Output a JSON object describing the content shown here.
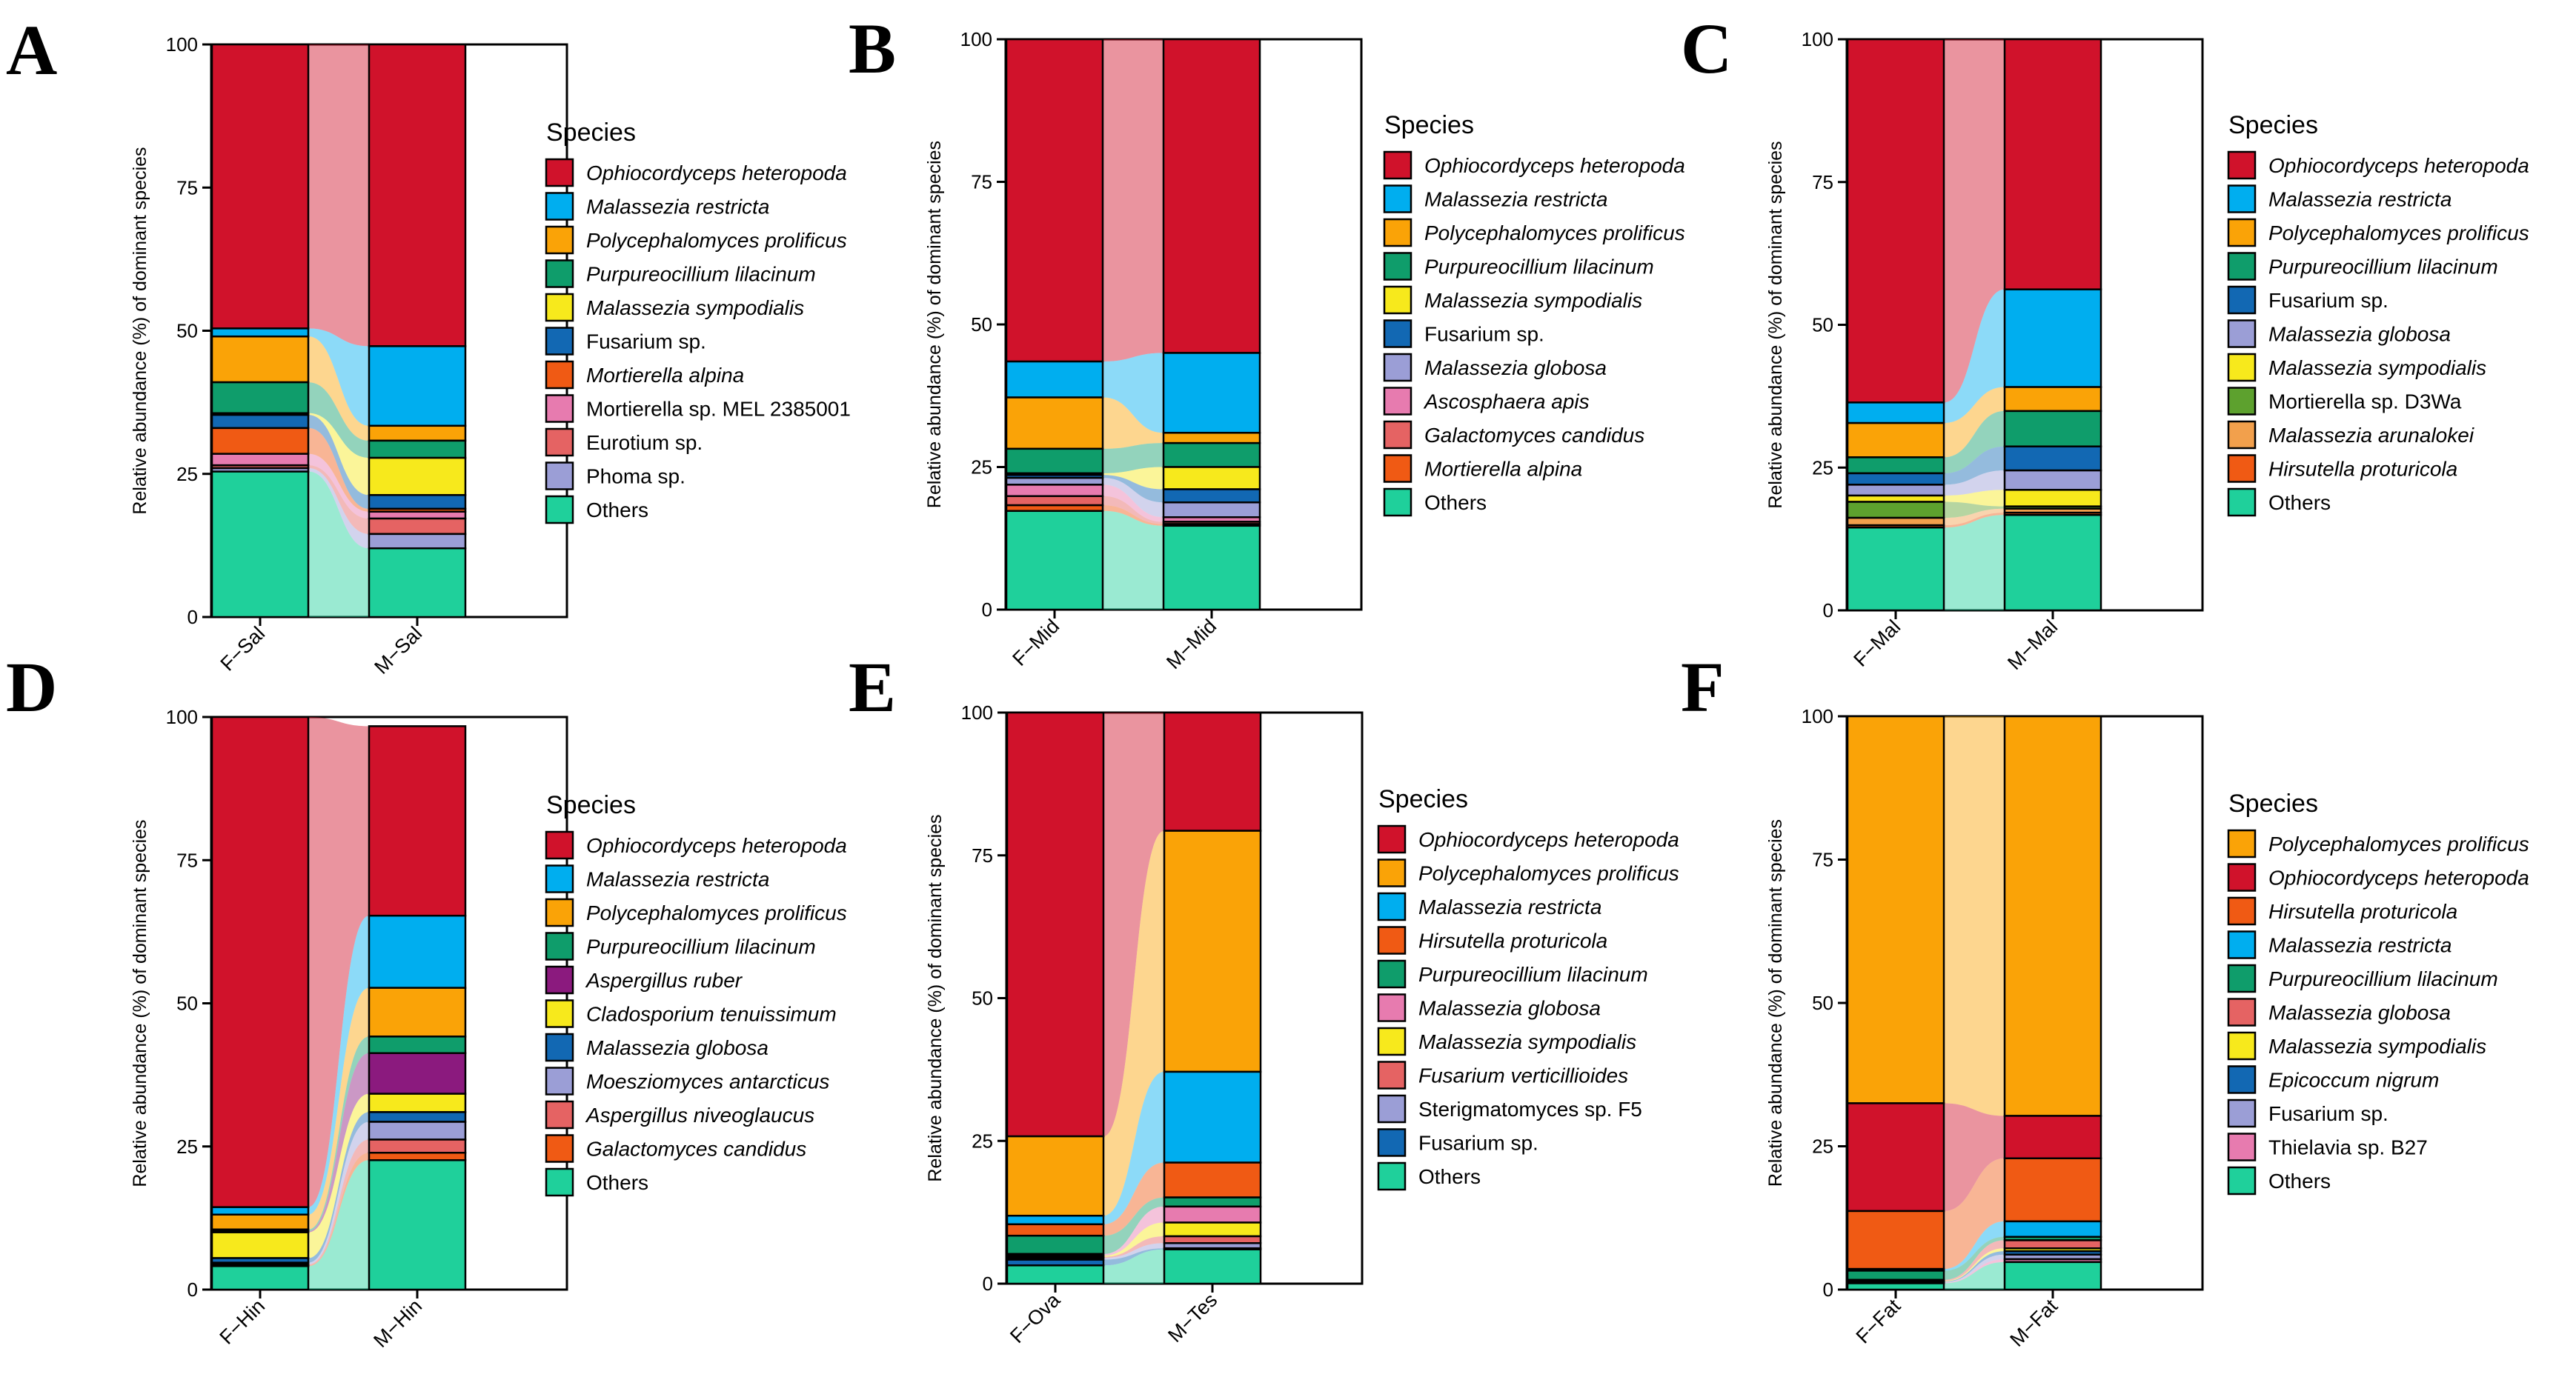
{
  "chart_data": [
    {
      "panel": "A",
      "type": "bar",
      "stacked": true,
      "categories": [
        "F−Sal",
        "M−Sal"
      ],
      "ylabel": "Relative abundance (%) of dominant species",
      "ylim": [
        0,
        100
      ],
      "yticks": [
        "0",
        "25",
        "50",
        "75",
        "100"
      ],
      "legend_title": "Species",
      "series": [
        {
          "name": "Ophiocordyceps heteropoda",
          "italic": true,
          "color": "#D0122B",
          "values": [
            49.6,
            52.7
          ]
        },
        {
          "name": "Malassezia restricta",
          "italic": true,
          "color": "#00AEEF",
          "values": [
            1.4,
            13.9
          ]
        },
        {
          "name": "Polycephalomyces prolificus",
          "italic": true,
          "color": "#FAA307",
          "values": [
            8.0,
            2.6
          ]
        },
        {
          "name": "Purpureocillium lilacinum",
          "italic": true,
          "color": "#0F9D6B",
          "values": [
            5.4,
            3.0
          ]
        },
        {
          "name": "Malassezia sympodialis",
          "italic": true,
          "color": "#F7E91C",
          "values": [
            0.3,
            6.5
          ]
        },
        {
          "name": "Fusarium sp.",
          "italic": false,
          "color": "#1268B3",
          "values": [
            2.3,
            2.4
          ]
        },
        {
          "name": "Mortierella alpina",
          "italic": true,
          "color": "#F05A14",
          "values": [
            4.5,
            0.5
          ]
        },
        {
          "name": "Mortierella sp. MEL 2385001",
          "italic": false,
          "color": "#E77BAF",
          "values": [
            2.0,
            1.2
          ]
        },
        {
          "name": "Eurotium sp.",
          "italic": false,
          "color": "#E56363",
          "values": [
            0.5,
            2.7
          ]
        },
        {
          "name": "Phoma sp.",
          "italic": false,
          "color": "#9B9ED6",
          "values": [
            0.6,
            2.5
          ]
        },
        {
          "name": "Others",
          "italic": false,
          "color": "#1FD09B",
          "values": [
            25.4,
            12.0
          ]
        }
      ]
    },
    {
      "panel": "B",
      "type": "bar",
      "stacked": true,
      "categories": [
        "F−Mid",
        "M−Mid"
      ],
      "ylabel": "Relative abundance (%) of dominant species",
      "ylim": [
        0,
        100
      ],
      "yticks": [
        "0",
        "25",
        "50",
        "75",
        "100"
      ],
      "legend_title": "Species",
      "series": [
        {
          "name": "Ophiocordyceps heteropoda",
          "italic": true,
          "color": "#D0122B",
          "values": [
            56.5,
            55.0
          ]
        },
        {
          "name": "Malassezia restricta",
          "italic": true,
          "color": "#00AEEF",
          "values": [
            6.3,
            14.0
          ]
        },
        {
          "name": "Polycephalomyces prolificus",
          "italic": true,
          "color": "#FAA307",
          "values": [
            9.0,
            1.8
          ]
        },
        {
          "name": "Purpureocillium lilacinum",
          "italic": true,
          "color": "#0F9D6B",
          "values": [
            4.3,
            4.2
          ]
        },
        {
          "name": "Malassezia sympodialis",
          "italic": true,
          "color": "#F7E91C",
          "values": [
            0.3,
            3.9
          ]
        },
        {
          "name": "Fusarium sp.",
          "italic": false,
          "color": "#1268B3",
          "values": [
            0.5,
            2.3
          ]
        },
        {
          "name": "Malassezia globosa",
          "italic": true,
          "color": "#9B9ED6",
          "values": [
            1.2,
            2.6
          ]
        },
        {
          "name": "Ascosphaera apis",
          "italic": true,
          "color": "#E77BAF",
          "values": [
            2.0,
            0.8
          ]
        },
        {
          "name": "Galactomyces candidus",
          "italic": true,
          "color": "#E56363",
          "values": [
            1.6,
            0.4
          ]
        },
        {
          "name": "Mortierella alpina",
          "italic": true,
          "color": "#F05A14",
          "values": [
            1.0,
            0.3
          ]
        },
        {
          "name": "Others",
          "italic": false,
          "color": "#1FD09B",
          "values": [
            17.3,
            14.7
          ]
        }
      ]
    },
    {
      "panel": "C",
      "type": "bar",
      "stacked": true,
      "categories": [
        "F−Mal",
        "M−Mal"
      ],
      "ylabel": "Relative abundance (%) of dominant species",
      "ylim": [
        0,
        100
      ],
      "yticks": [
        "0",
        "25",
        "50",
        "75",
        "100"
      ],
      "legend_title": "Species",
      "series": [
        {
          "name": "Ophiocordyceps heteropoda",
          "italic": true,
          "color": "#D0122B",
          "values": [
            63.6,
            43.8
          ]
        },
        {
          "name": "Malassezia restricta",
          "italic": true,
          "color": "#00AEEF",
          "values": [
            3.6,
            17.1
          ]
        },
        {
          "name": "Polycephalomyces prolificus",
          "italic": true,
          "color": "#FAA307",
          "values": [
            6.0,
            4.2
          ]
        },
        {
          "name": "Purpureocillium lilacinum",
          "italic": true,
          "color": "#0F9D6B",
          "values": [
            2.8,
            6.2
          ]
        },
        {
          "name": "Fusarium sp.",
          "italic": false,
          "color": "#1268B3",
          "values": [
            2.0,
            4.2
          ]
        },
        {
          "name": "Malassezia globosa",
          "italic": true,
          "color": "#9B9ED6",
          "values": [
            1.9,
            3.4
          ]
        },
        {
          "name": "Malassezia sympodialis",
          "italic": true,
          "color": "#F7E91C",
          "values": [
            1.1,
            2.9
          ]
        },
        {
          "name": "Mortierella sp. D3Wa",
          "italic": false,
          "color": "#5DA12E",
          "values": [
            2.8,
            0.4
          ]
        },
        {
          "name": "Malassezia arunalokei",
          "italic": true,
          "color": "#F2A04C",
          "values": [
            1.3,
            0.7
          ]
        },
        {
          "name": "Hirsutella proturicola",
          "italic": true,
          "color": "#F05A14",
          "values": [
            0.4,
            0.4
          ]
        },
        {
          "name": "Others",
          "italic": false,
          "color": "#1FD09B",
          "values": [
            14.5,
            16.7
          ]
        }
      ]
    },
    {
      "panel": "D",
      "type": "bar",
      "stacked": true,
      "categories": [
        "F−Hin",
        "M−Hin"
      ],
      "ylabel": "Relative abundance (%) of dominant species",
      "ylim": [
        0,
        100
      ],
      "yticks": [
        "0",
        "25",
        "50",
        "75",
        "100"
      ],
      "legend_title": "Species",
      "series": [
        {
          "name": "Ophiocordyceps heteropoda",
          "italic": true,
          "color": "#D0122B",
          "values": [
            85.6,
            33.1
          ]
        },
        {
          "name": "Malassezia restricta",
          "italic": true,
          "color": "#00AEEF",
          "values": [
            1.3,
            12.6
          ]
        },
        {
          "name": "Polycephalomyces prolificus",
          "italic": true,
          "color": "#FAA307",
          "values": [
            2.6,
            8.5
          ]
        },
        {
          "name": "Purpureocillium lilacinum",
          "italic": true,
          "color": "#0F9D6B",
          "values": [
            0.3,
            2.9
          ]
        },
        {
          "name": "Aspergillus ruber",
          "italic": true,
          "color": "#8B1A7E",
          "values": [
            0.2,
            7.1
          ]
        },
        {
          "name": "Cladosporium tenuissimum",
          "italic": true,
          "color": "#F7E91C",
          "values": [
            4.5,
            3.2
          ]
        },
        {
          "name": "Malassezia globosa",
          "italic": true,
          "color": "#1268B3",
          "values": [
            0.8,
            1.7
          ]
        },
        {
          "name": "Moesziomyces antarcticus",
          "italic": true,
          "color": "#9B9ED6",
          "values": [
            0.3,
            3.1
          ]
        },
        {
          "name": "Aspergillus niveoglaucus",
          "italic": true,
          "color": "#E56363",
          "values": [
            0.2,
            2.3
          ]
        },
        {
          "name": "Galactomyces candidus",
          "italic": true,
          "color": "#F05A14",
          "values": [
            0.1,
            1.3
          ]
        },
        {
          "name": "Others",
          "italic": false,
          "color": "#1FD09B",
          "values": [
            4.1,
            22.6
          ]
        }
      ]
    },
    {
      "panel": "E",
      "type": "bar",
      "stacked": true,
      "categories": [
        "F−Ova",
        "M−Tes"
      ],
      "ylabel": "Relative abundance (%) of dominant species",
      "ylim": [
        0,
        100
      ],
      "yticks": [
        "0",
        "25",
        "50",
        "75",
        "100"
      ],
      "legend_title": "Species",
      "series": [
        {
          "name": "Ophiocordyceps heteropoda",
          "italic": true,
          "color": "#D0122B",
          "values": [
            74.2,
            20.7
          ]
        },
        {
          "name": "Polycephalomyces prolificus",
          "italic": true,
          "color": "#FAA307",
          "values": [
            13.9,
            42.2
          ]
        },
        {
          "name": "Malassezia restricta",
          "italic": true,
          "color": "#00AEEF",
          "values": [
            1.5,
            15.9
          ]
        },
        {
          "name": "Hirsutella proturicola",
          "italic": true,
          "color": "#F05A14",
          "values": [
            2.0,
            6.1
          ]
        },
        {
          "name": "Purpureocillium lilacinum",
          "italic": true,
          "color": "#0F9D6B",
          "values": [
            3.2,
            1.6
          ]
        },
        {
          "name": "Malassezia globosa",
          "italic": true,
          "color": "#E77BAF",
          "values": [
            0.3,
            2.8
          ]
        },
        {
          "name": "Malassezia sympodialis",
          "italic": true,
          "color": "#F7E91C",
          "values": [
            0.2,
            2.4
          ]
        },
        {
          "name": "Fusarium verticillioides",
          "italic": true,
          "color": "#E56363",
          "values": [
            0.2,
            1.2
          ]
        },
        {
          "name": "Sterigmatomyces sp. F5",
          "italic": false,
          "color": "#9B9ED6",
          "values": [
            0.3,
            0.9
          ]
        },
        {
          "name": "Fusarium sp.",
          "italic": false,
          "color": "#1268B3",
          "values": [
            1.0,
            0.2
          ]
        },
        {
          "name": "Others",
          "italic": false,
          "color": "#1FD09B",
          "values": [
            3.2,
            6.0
          ]
        }
      ]
    },
    {
      "panel": "F",
      "type": "bar",
      "stacked": true,
      "categories": [
        "F−Fat",
        "M−Fat"
      ],
      "ylabel": "Relative abundance (%) of dominant species",
      "ylim": [
        0,
        100
      ],
      "yticks": [
        "0",
        "25",
        "50",
        "75",
        "100"
      ],
      "legend_title": "Species",
      "series": [
        {
          "name": "Polycephalomyces prolificus",
          "italic": true,
          "color": "#FAA307",
          "values": [
            67.5,
            69.7
          ]
        },
        {
          "name": "Ophiocordyceps heteropoda",
          "italic": true,
          "color": "#D0122B",
          "values": [
            18.8,
            7.4
          ]
        },
        {
          "name": "Hirsutella proturicola",
          "italic": true,
          "color": "#F05A14",
          "values": [
            10.1,
            11.0
          ]
        },
        {
          "name": "Malassezia restricta",
          "italic": true,
          "color": "#00AEEF",
          "values": [
            0.3,
            2.7
          ]
        },
        {
          "name": "Purpureocillium lilacinum",
          "italic": true,
          "color": "#0F9D6B",
          "values": [
            1.6,
            0.6
          ]
        },
        {
          "name": "Malassezia globosa",
          "italic": true,
          "color": "#E56363",
          "values": [
            0.2,
            1.4
          ]
        },
        {
          "name": "Malassezia sympodialis",
          "italic": true,
          "color": "#F7E91C",
          "values": [
            0.1,
            0.5
          ]
        },
        {
          "name": "Epicoccum nigrum",
          "italic": true,
          "color": "#1268B3",
          "values": [
            0.1,
            0.6
          ]
        },
        {
          "name": "Fusarium sp.",
          "italic": false,
          "color": "#9B9ED6",
          "values": [
            0.1,
            0.8
          ]
        },
        {
          "name": "Thielavia sp. B27",
          "italic": false,
          "color": "#E77BAF",
          "values": [
            0.1,
            0.5
          ]
        },
        {
          "name": "Others",
          "italic": false,
          "color": "#1FD09B",
          "values": [
            1.1,
            4.8
          ]
        }
      ]
    }
  ]
}
